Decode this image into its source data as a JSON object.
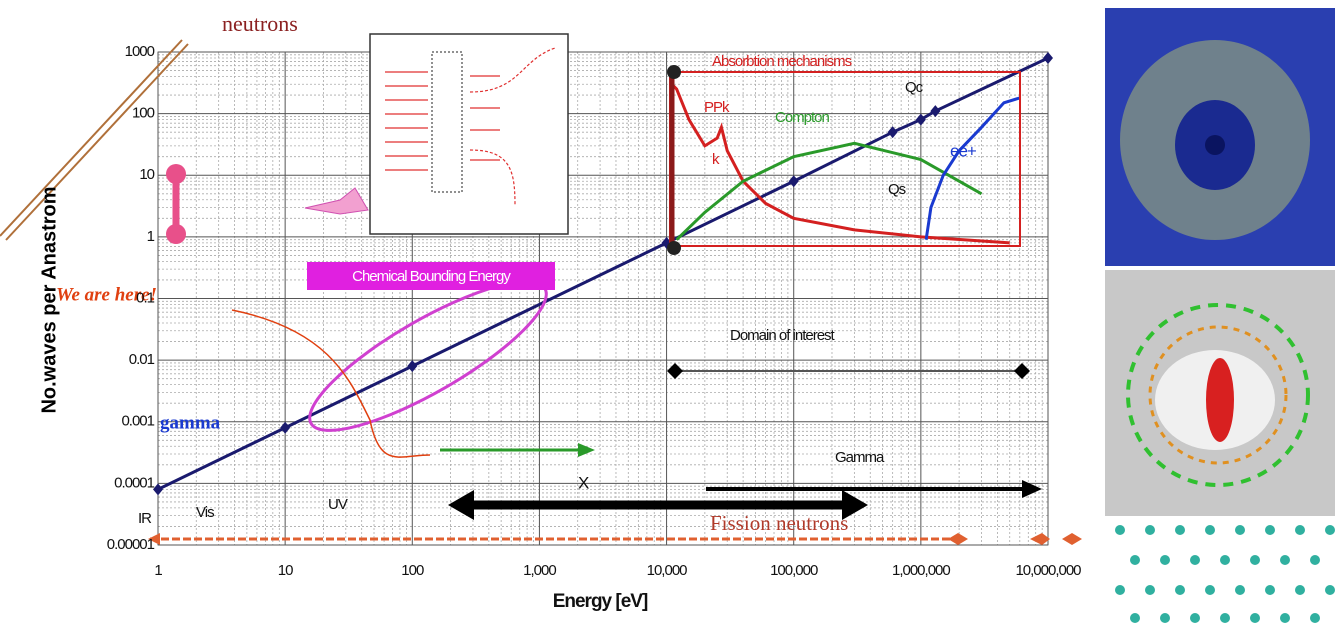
{
  "chart_data": {
    "type": "line",
    "x_label": "Energy [eV]",
    "y_label": "No.waves per Anastrom",
    "log_x": true,
    "log_y": true,
    "grid": true,
    "xlim": [
      1,
      10000000
    ],
    "ylim": [
      1e-05,
      1000
    ],
    "xticks": [
      1,
      10,
      100,
      {
        "value": 1000,
        "label": "1,000"
      },
      {
        "value": 10000,
        "label": "10,000"
      },
      {
        "value": 100000,
        "label": "100,000"
      },
      {
        "value": 1000000,
        "label": "1,000,000"
      },
      {
        "value": 10000000,
        "label": "10,000,000"
      }
    ],
    "yticks": [
      1000,
      100,
      10,
      1,
      0.1,
      0.01,
      0.001,
      0.0001,
      1e-05
    ],
    "series": [
      {
        "color": "#1a1a6e",
        "markers": true,
        "x": [
          1,
          10,
          100,
          10000,
          100000,
          600000,
          1000000,
          1300000,
          10000000
        ],
        "values": [
          8e-05,
          0.0008,
          0.008,
          0.8,
          8,
          50,
          80,
          110,
          800
        ]
      },
      {
        "color": "#d42020",
        "markers": false,
        "x": [
          11000,
          12000,
          15000,
          20000,
          25000,
          27000,
          30000,
          40000,
          60000,
          100000,
          300000,
          1000000,
          5000000
        ],
        "values": [
          300,
          250,
          80,
          30,
          40,
          60,
          25,
          8,
          3.5,
          2,
          1.3,
          1,
          0.8
        ]
      },
      {
        "color": "#2a9a2a",
        "markers": false,
        "x": [
          12000,
          20000,
          40000,
          100000,
          300000,
          1000000,
          3000000
        ],
        "values": [
          0.9,
          2.5,
          8,
          20,
          33,
          18,
          5
        ]
      },
      {
        "color": "#1a3ad0",
        "markers": false,
        "x": [
          1100000,
          1200000,
          1500000,
          2000000,
          3000000,
          4500000,
          6000000
        ],
        "values": [
          0.9,
          3,
          10,
          25,
          60,
          150,
          180
        ]
      }
    ],
    "annotations": [
      "neutrons",
      "Absorbtion mechanisms",
      "PPk",
      "k",
      "Compton",
      "Qc",
      "Qs",
      "ee+",
      "Chemical Bounding Energy",
      "We are here!",
      "gamma",
      "Domain of interest",
      "Gamma",
      "X",
      "IR",
      "Vis",
      "UV",
      "Fission neutrons"
    ]
  }
}
